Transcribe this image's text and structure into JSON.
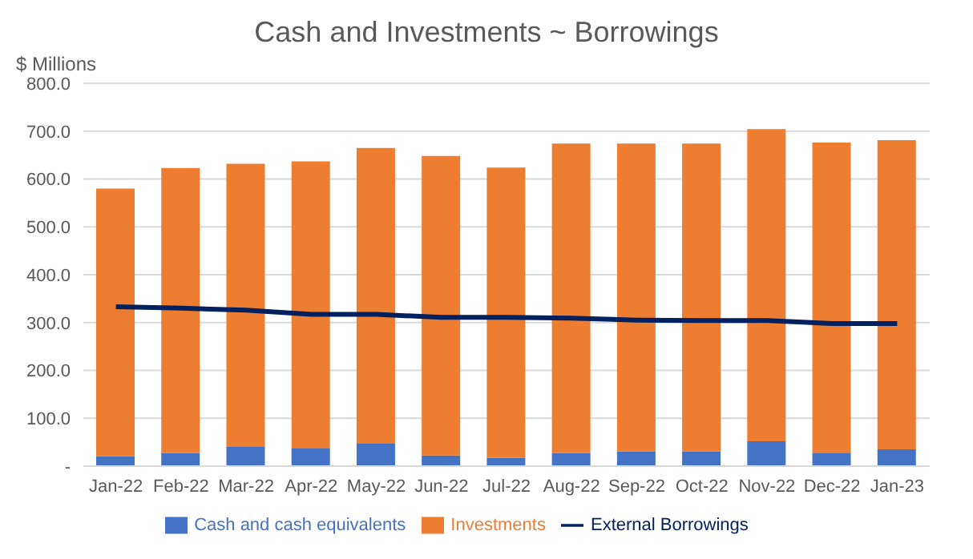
{
  "chart_data": {
    "type": "bar",
    "title": "Cash and Investments ~ Borrowings",
    "ylabel": "$ Millions",
    "stacked": true,
    "categories": [
      "Jan-22",
      "Feb-22",
      "Mar-22",
      "Apr-22",
      "May-22",
      "Jun-22",
      "Jul-22",
      "Aug-22",
      "Sep-22",
      "Oct-22",
      "Nov-22",
      "Dec-22",
      "Jan-23"
    ],
    "series": [
      {
        "name": "Cash and cash equivalents",
        "color": "#4472c4",
        "values": [
          21,
          27,
          40,
          38,
          48,
          22,
          17,
          27,
          31,
          31,
          52,
          28,
          35
        ]
      },
      {
        "name": "Investments",
        "color": "#ed7d31",
        "values": [
          559,
          596,
          592,
          599,
          617,
          626,
          607,
          647,
          643,
          643,
          652,
          648,
          646
        ]
      },
      {
        "name": "External Borrowings",
        "type": "line",
        "color": "#002060",
        "values": [
          333,
          330,
          326,
          317,
          317,
          311,
          311,
          309,
          305,
          304,
          304,
          298,
          298
        ]
      }
    ],
    "ylim": [
      0,
      800
    ],
    "yticks": [
      {
        "value": 0,
        "label": "-"
      },
      {
        "value": 100,
        "label": "100.0"
      },
      {
        "value": 200,
        "label": "200.0"
      },
      {
        "value": 300,
        "label": "300.0"
      },
      {
        "value": 400,
        "label": "400.0"
      },
      {
        "value": 500,
        "label": "500.0"
      },
      {
        "value": 600,
        "label": "600.0"
      },
      {
        "value": 700,
        "label": "700.0"
      },
      {
        "value": 800,
        "label": "800.0"
      }
    ],
    "grid": "y",
    "legend": "bottom",
    "marker": "none",
    "line_style": "solid"
  }
}
